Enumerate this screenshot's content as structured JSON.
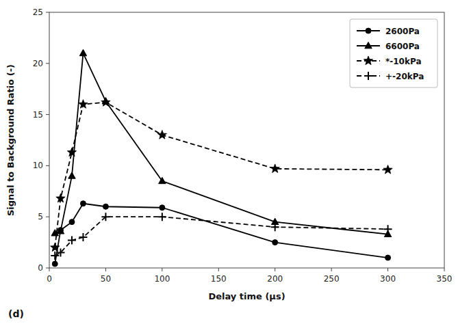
{
  "chart_data": {
    "type": "line",
    "x_label": "Delay time (μs)",
    "y_label": "Signal to Background Ratio (-)",
    "x": [
      5,
      10,
      20,
      30,
      50,
      100,
      200,
      300
    ],
    "series": [
      {
        "name": "2600Pa",
        "color": "#000000",
        "marker": "circle",
        "line_style": "solid",
        "values": [
          0.4,
          3.7,
          4.5,
          6.3,
          6.0,
          5.9,
          2.5,
          1.0
        ]
      },
      {
        "name": "6600Pa",
        "color": "#000000",
        "marker": "triangle",
        "line_style": "solid",
        "values": [
          3.4,
          3.6,
          9.0,
          21.0,
          16.3,
          8.5,
          4.5,
          3.3
        ]
      },
      {
        "name": "*-10kPa",
        "color": "#000000",
        "marker": "star",
        "line_style": "dashed",
        "values": [
          2.0,
          6.8,
          11.3,
          16.0,
          16.2,
          13.0,
          9.7,
          9.6
        ]
      },
      {
        "name": "+-20kPa",
        "color": "#000000",
        "marker": "plus",
        "line_style": "dashed",
        "values": [
          1.2,
          1.5,
          2.7,
          3.0,
          5.0,
          5.0,
          4.0,
          3.8
        ]
      }
    ],
    "xlim": [
      0,
      350
    ],
    "ylim": [
      0,
      25
    ],
    "xticks": [
      0,
      50,
      100,
      150,
      200,
      250,
      300,
      350
    ],
    "yticks": [
      0,
      5,
      10,
      15,
      20,
      25
    ],
    "grid": false,
    "legend": "upper-right",
    "annotations": [
      "(d)"
    ]
  }
}
